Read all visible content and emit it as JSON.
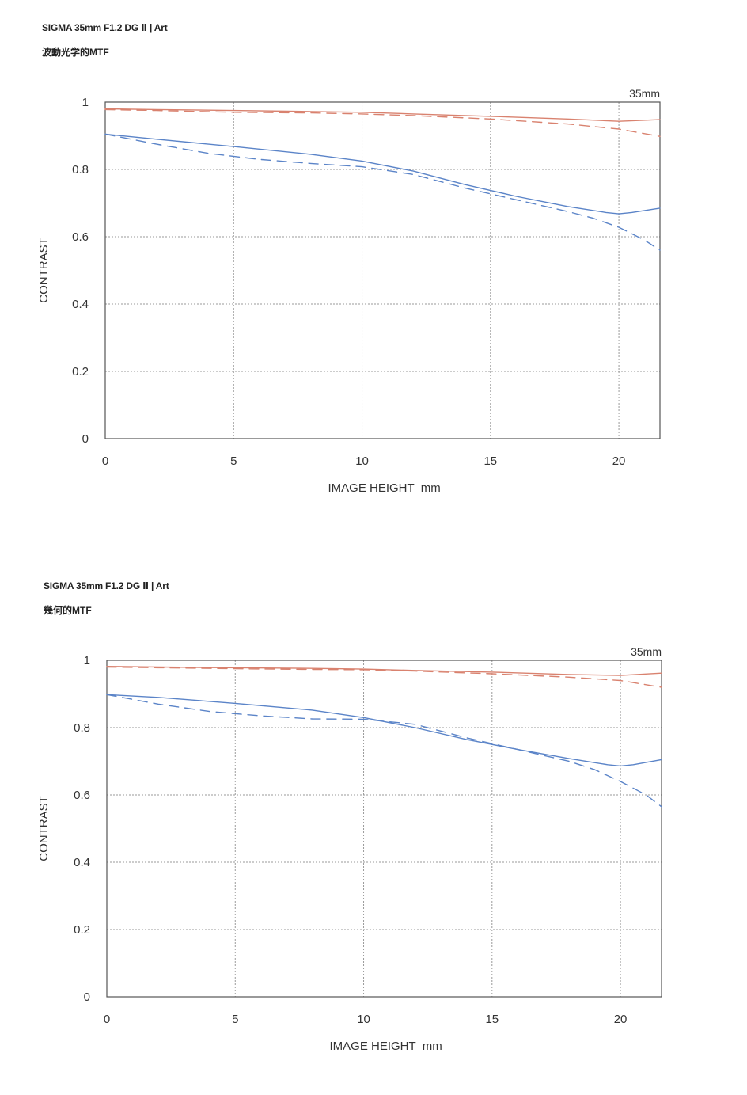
{
  "panels": [
    {
      "product_title": "SIGMA 35mm F1.2 DG Ⅱ | Art",
      "chart_title": "波動光学的MTF"
    },
    {
      "product_title": "SIGMA 35mm F1.2 DG Ⅱ | Art",
      "chart_title": "幾何的MTF"
    }
  ],
  "chart_data": [
    {
      "type": "line",
      "title": "波動光学的MTF",
      "xlabel": "IMAGE HEIGHT  mm",
      "ylabel": "CONTRAST",
      "corner_label": "35mm",
      "xlim": [
        0,
        21.6
      ],
      "ylim": [
        0,
        1
      ],
      "xticks": [
        0,
        5,
        10,
        15,
        20
      ],
      "yticks": [
        0,
        0.2,
        0.4,
        0.6,
        0.8,
        1
      ],
      "ytick_labels": [
        "0",
        "0.2",
        "0.4",
        "0.6",
        "0.8",
        "1"
      ],
      "grid": true,
      "colors": {
        "red": "#d9826f",
        "blue": "#5b84c8",
        "grid": "#9a9a9a",
        "axis": "#555555"
      },
      "series": [
        {
          "color": "red",
          "dash": "solid",
          "x": [
            0,
            2,
            5,
            8,
            10,
            12,
            15,
            18,
            20,
            21.6
          ],
          "y": [
            0.98,
            0.978,
            0.975,
            0.972,
            0.97,
            0.965,
            0.958,
            0.95,
            0.943,
            0.948
          ]
        },
        {
          "color": "red",
          "dash": "dashed",
          "x": [
            0,
            2,
            5,
            8,
            10,
            12,
            15,
            18,
            20,
            21.6
          ],
          "y": [
            0.978,
            0.975,
            0.97,
            0.968,
            0.965,
            0.96,
            0.95,
            0.935,
            0.92,
            0.898
          ]
        },
        {
          "color": "blue",
          "dash": "solid",
          "x": [
            0,
            2,
            5,
            8,
            10,
            12,
            14,
            16,
            18,
            19.5,
            20,
            20.5,
            21.6
          ],
          "y": [
            0.905,
            0.89,
            0.868,
            0.845,
            0.825,
            0.795,
            0.755,
            0.72,
            0.69,
            0.672,
            0.668,
            0.672,
            0.685
          ]
        },
        {
          "color": "blue",
          "dash": "dashed",
          "x": [
            0,
            2,
            4,
            6,
            8,
            10,
            12,
            14,
            16,
            18,
            19,
            20,
            21,
            21.6
          ],
          "y": [
            0.905,
            0.875,
            0.848,
            0.83,
            0.818,
            0.808,
            0.785,
            0.745,
            0.71,
            0.675,
            0.655,
            0.628,
            0.59,
            0.56
          ]
        }
      ]
    },
    {
      "type": "line",
      "title": "幾何的MTF",
      "xlabel": "IMAGE HEIGHT  mm",
      "ylabel": "CONTRAST",
      "corner_label": "35mm",
      "xlim": [
        0,
        21.6
      ],
      "ylim": [
        0,
        1
      ],
      "xticks": [
        0,
        5,
        10,
        15,
        20
      ],
      "yticks": [
        0,
        0.2,
        0.4,
        0.6,
        0.8,
        1
      ],
      "ytick_labels": [
        "0",
        "0.2",
        "0.4",
        "0.6",
        "0.8",
        "1"
      ],
      "grid": true,
      "colors": {
        "red": "#d9826f",
        "blue": "#5b84c8",
        "grid": "#9a9a9a",
        "axis": "#555555"
      },
      "series": [
        {
          "color": "red",
          "dash": "solid",
          "x": [
            0,
            2,
            5,
            8,
            10,
            12,
            15,
            18,
            20,
            21.6
          ],
          "y": [
            0.982,
            0.98,
            0.978,
            0.976,
            0.974,
            0.97,
            0.965,
            0.958,
            0.955,
            0.962
          ]
        },
        {
          "color": "red",
          "dash": "dashed",
          "x": [
            0,
            2,
            5,
            8,
            10,
            12,
            15,
            18,
            20,
            21.6
          ],
          "y": [
            0.98,
            0.978,
            0.975,
            0.973,
            0.972,
            0.968,
            0.96,
            0.95,
            0.94,
            0.92
          ]
        },
        {
          "color": "blue",
          "dash": "solid",
          "x": [
            0,
            2,
            5,
            8,
            10,
            12,
            14,
            16,
            18,
            19.5,
            20,
            20.5,
            21.6
          ],
          "y": [
            0.898,
            0.89,
            0.872,
            0.852,
            0.83,
            0.8,
            0.765,
            0.735,
            0.708,
            0.69,
            0.686,
            0.69,
            0.705
          ]
        },
        {
          "color": "blue",
          "dash": "dashed",
          "x": [
            0,
            2,
            4,
            6,
            8,
            10,
            12,
            14,
            16,
            18,
            19,
            20,
            21,
            21.6
          ],
          "y": [
            0.898,
            0.87,
            0.848,
            0.835,
            0.826,
            0.825,
            0.81,
            0.77,
            0.735,
            0.7,
            0.675,
            0.64,
            0.6,
            0.565
          ]
        }
      ]
    }
  ]
}
